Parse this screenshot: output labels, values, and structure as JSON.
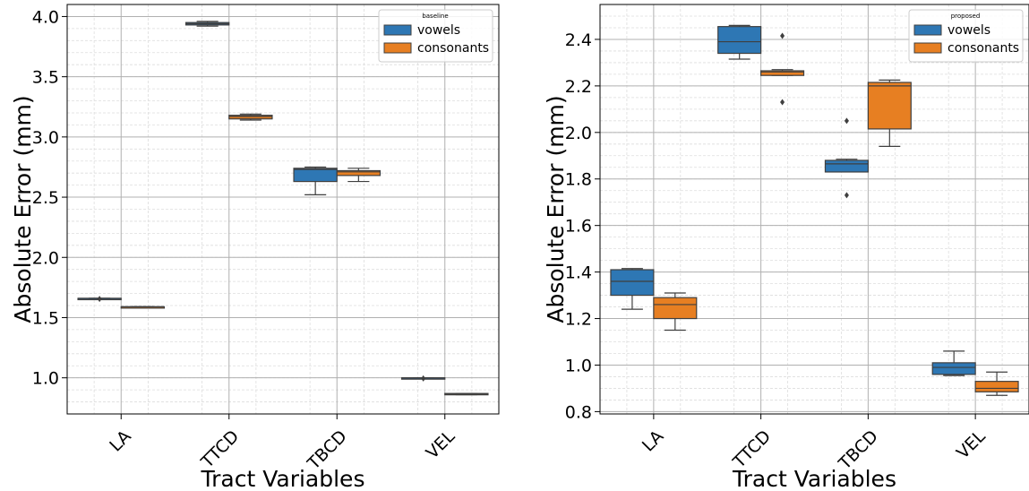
{
  "colors": {
    "vowels": "#2e77b4",
    "consonants": "#e77f22",
    "grid_major": "#b0b0b0",
    "grid_minor": "#dddddd",
    "whisker": "#3f3f3f"
  },
  "chart_data": [
    {
      "type": "box",
      "ylabel": "Absolute Error (mm)",
      "xlabel": "Tract Variables",
      "ylim": [
        0.7,
        4.1
      ],
      "yticks": [
        1.0,
        1.5,
        2.0,
        2.5,
        3.0,
        3.5,
        4.0
      ],
      "ytick_labels": [
        "1.0",
        "1.5",
        "2.0",
        "2.5",
        "3.0",
        "3.5",
        "4.0"
      ],
      "minor_step": 0.1,
      "grid": true,
      "categories": [
        "LA",
        "TTCD",
        "TBCD",
        "VEL"
      ],
      "legend": {
        "title": "baseline",
        "position": "top-right"
      },
      "series": [
        {
          "name": "vowels",
          "color_key": "vowels",
          "boxes": [
            {
              "whislo": 1.66,
              "q1": 1.66,
              "med": 1.66,
              "q3": 1.66,
              "whishi": 1.66,
              "fliers": [
                1.655
              ]
            },
            {
              "whislo": 3.92,
              "q1": 3.93,
              "med": 3.94,
              "q3": 3.95,
              "whishi": 3.96,
              "fliers": []
            },
            {
              "whislo": 2.52,
              "q1": 2.63,
              "med": 2.73,
              "q3": 2.74,
              "whishi": 2.75,
              "fliers": []
            },
            {
              "whislo": 1.0,
              "q1": 1.0,
              "med": 1.0,
              "q3": 1.0,
              "whishi": 1.0,
              "fliers": [
                0.995
              ]
            }
          ]
        },
        {
          "name": "consonants",
          "color_key": "consonants",
          "boxes": [
            {
              "whislo": 1.59,
              "q1": 1.59,
              "med": 1.59,
              "q3": 1.59,
              "whishi": 1.59,
              "fliers": []
            },
            {
              "whislo": 3.14,
              "q1": 3.15,
              "med": 3.17,
              "q3": 3.18,
              "whishi": 3.19,
              "fliers": []
            },
            {
              "whislo": 2.63,
              "q1": 2.68,
              "med": 2.71,
              "q3": 2.72,
              "whishi": 2.74,
              "fliers": []
            },
            {
              "whislo": 0.86,
              "q1": 0.86,
              "med": 0.865,
              "q3": 0.87,
              "whishi": 0.87,
              "fliers": []
            }
          ]
        }
      ]
    },
    {
      "type": "box",
      "ylabel": "Absolute Error (mm)",
      "xlabel": "Tract Variables",
      "ylim": [
        0.79,
        2.55
      ],
      "yticks": [
        0.8,
        1.0,
        1.2,
        1.4,
        1.6,
        1.8,
        2.0,
        2.2,
        2.4
      ],
      "ytick_labels": [
        "0.8",
        "1.0",
        "1.2",
        "1.4",
        "1.6",
        "1.8",
        "2.0",
        "2.2",
        "2.4"
      ],
      "minor_step": 0.05,
      "grid": true,
      "categories": [
        "LA",
        "TTCD",
        "TBCD",
        "VEL"
      ],
      "legend": {
        "title": "proposed",
        "position": "top-right"
      },
      "series": [
        {
          "name": "vowels",
          "color_key": "vowels",
          "boxes": [
            {
              "whislo": 1.24,
              "q1": 1.3,
              "med": 1.36,
              "q3": 1.41,
              "whishi": 1.415,
              "fliers": []
            },
            {
              "whislo": 2.315,
              "q1": 2.34,
              "med": 2.39,
              "q3": 2.455,
              "whishi": 2.46,
              "fliers": []
            },
            {
              "whislo": 1.83,
              "q1": 1.83,
              "med": 1.865,
              "q3": 1.88,
              "whishi": 1.885,
              "fliers": [
                2.05,
                1.73
              ]
            },
            {
              "whislo": 0.955,
              "q1": 0.96,
              "med": 0.99,
              "q3": 1.01,
              "whishi": 1.06,
              "fliers": []
            }
          ]
        },
        {
          "name": "consonants",
          "color_key": "consonants",
          "boxes": [
            {
              "whislo": 1.15,
              "q1": 1.2,
              "med": 1.26,
              "q3": 1.29,
              "whishi": 1.31,
              "fliers": []
            },
            {
              "whislo": 2.245,
              "q1": 2.245,
              "med": 2.26,
              "q3": 2.265,
              "whishi": 2.27,
              "fliers": [
                2.415,
                2.13
              ]
            },
            {
              "whislo": 1.94,
              "q1": 2.015,
              "med": 2.2,
              "q3": 2.215,
              "whishi": 2.225,
              "fliers": []
            },
            {
              "whislo": 0.87,
              "q1": 0.885,
              "med": 0.9,
              "q3": 0.93,
              "whishi": 0.97,
              "fliers": []
            }
          ]
        }
      ]
    }
  ]
}
